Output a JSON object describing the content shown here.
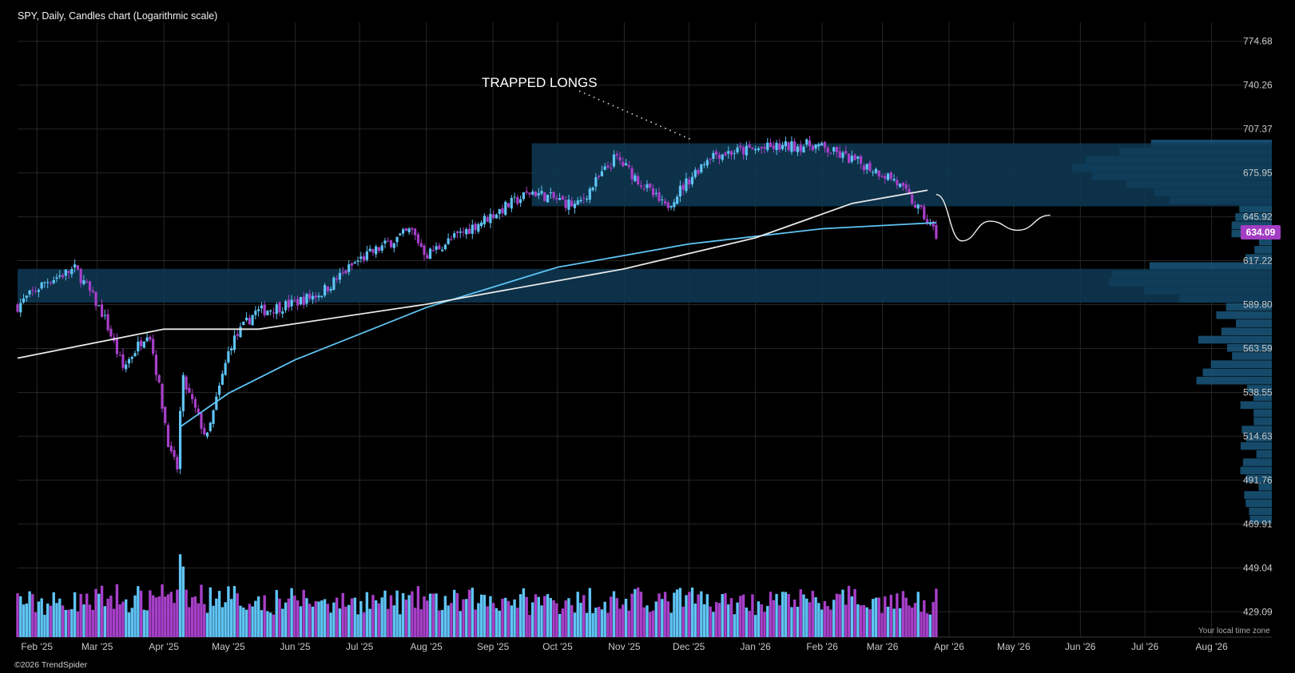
{
  "header": {
    "title": "SPY, Daily, Candles chart (Logarithmic scale)"
  },
  "footer": {
    "copyright": "©2026 TrendSpider",
    "timezone": "Your local time zone"
  },
  "colors": {
    "up": "#5fc4f5",
    "down": "#a73fc9",
    "zone": "#0e3a55",
    "ma_fast": "#5fc4f5",
    "ma_slow": "#e8e8e8",
    "price_badge": "#a23dc4"
  },
  "chart_data": {
    "type": "candlestick",
    "symbol": "SPY",
    "interval": "Daily",
    "y_scale": "log",
    "ylim": [
      418,
      790
    ],
    "y_ticks": [
      "774.68",
      "740.26",
      "707.37",
      "675.95",
      "645.92",
      "617.22",
      "589.80",
      "563.59",
      "538.55",
      "514.63",
      "491.76",
      "469.91",
      "449.04",
      "429.09"
    ],
    "x_ticks": [
      "Feb '25",
      "Mar '25",
      "Apr '25",
      "May '25",
      "Jun '25",
      "Jul '25",
      "Aug '25",
      "Sep '25",
      "Oct '25",
      "Nov '25",
      "Dec '25",
      "Jan '26",
      "Feb '26",
      "Mar '26",
      "Apr '26",
      "May '26",
      "Jun '26",
      "Jul '26",
      "Aug '26"
    ],
    "last_price": "634.09",
    "series": [
      {
        "date": "2025-01-23",
        "close": 589
      },
      {
        "date": "2025-02-05",
        "close": 604
      },
      {
        "date": "2025-02-19",
        "close": 612
      },
      {
        "date": "2025-03-04",
        "close": 583
      },
      {
        "date": "2025-03-13",
        "close": 552
      },
      {
        "date": "2025-03-25",
        "close": 575
      },
      {
        "date": "2025-04-04",
        "close": 505
      },
      {
        "date": "2025-04-08",
        "close": 496
      },
      {
        "date": "2025-04-09",
        "close": 548
      },
      {
        "date": "2025-04-21",
        "close": 513
      },
      {
        "date": "2025-05-02",
        "close": 566
      },
      {
        "date": "2025-05-13",
        "close": 585
      },
      {
        "date": "2025-05-30",
        "close": 590
      },
      {
        "date": "2025-06-13",
        "close": 597
      },
      {
        "date": "2025-06-30",
        "close": 617
      },
      {
        "date": "2025-07-25",
        "close": 637
      },
      {
        "date": "2025-08-01",
        "close": 621
      },
      {
        "date": "2025-08-29",
        "close": 645
      },
      {
        "date": "2025-09-19",
        "close": 663
      },
      {
        "date": "2025-10-10",
        "close": 653
      },
      {
        "date": "2025-10-28",
        "close": 687
      },
      {
        "date": "2025-11-20",
        "close": 652
      },
      {
        "date": "2025-12-11",
        "close": 689
      },
      {
        "date": "2026-01-09",
        "close": 694
      },
      {
        "date": "2026-01-28",
        "close": 696
      },
      {
        "date": "2026-02-20",
        "close": 682
      },
      {
        "date": "2026-03-06",
        "close": 672
      },
      {
        "date": "2026-03-20",
        "close": 647
      },
      {
        "date": "2026-03-26",
        "close": 634.09
      }
    ],
    "moving_averages": [
      {
        "color": "#5fc4f5",
        "points": [
          {
            "date": "2025-04-09",
            "value": 520
          },
          {
            "date": "2025-05-01",
            "value": 538
          },
          {
            "date": "2025-06-01",
            "value": 557
          },
          {
            "date": "2025-08-01",
            "value": 588
          },
          {
            "date": "2025-10-01",
            "value": 613
          },
          {
            "date": "2025-12-01",
            "value": 628
          },
          {
            "date": "2026-02-01",
            "value": 638
          },
          {
            "date": "2026-03-26",
            "value": 642
          }
        ]
      },
      {
        "color": "#e8e8e8",
        "points": [
          {
            "date": "2025-01-23",
            "value": 558
          },
          {
            "date": "2025-04-01",
            "value": 575
          },
          {
            "date": "2025-05-15",
            "value": 575
          },
          {
            "date": "2025-08-01",
            "value": 590
          },
          {
            "date": "2025-11-01",
            "value": 612
          },
          {
            "date": "2026-01-01",
            "value": 632
          },
          {
            "date": "2026-02-15",
            "value": 655
          },
          {
            "date": "2026-03-22",
            "value": 664
          }
        ]
      }
    ],
    "zones": [
      {
        "from": "2025-09-19",
        "low": 653,
        "high": 697
      },
      {
        "from": "2025-01-23",
        "low": 591,
        "high": 612
      }
    ],
    "projection": [
      {
        "date": "2026-03-26",
        "value": 661
      },
      {
        "date": "2026-04-07",
        "value": 630
      },
      {
        "date": "2026-04-20",
        "value": 643
      },
      {
        "date": "2026-05-03",
        "value": 637
      },
      {
        "date": "2026-05-18",
        "value": 647
      }
    ],
    "annotations": [
      {
        "text": "TRAPPED LONGS"
      }
    ],
    "volume_profile": "horizontal volume-at-price bars on right",
    "volume": "daily volume bars at bottom"
  }
}
